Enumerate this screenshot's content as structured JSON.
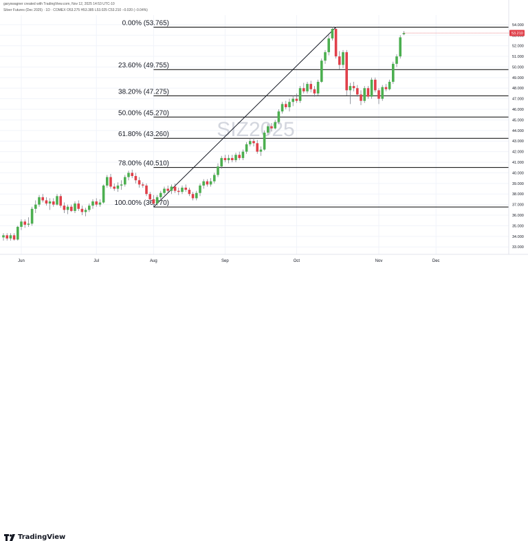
{
  "header": {
    "line1": "garyswagner created with TradingView.com, Nov 12, 2025 14:53 UTC-10",
    "line2": "Silver Futures (Dec 2025) · 1D · COMEX  O53.275  H53.385  L53.025  C53.210  −0.020 (−0.04%)"
  },
  "footer": {
    "brand": "TradingView"
  },
  "chart_data": {
    "type": "candlestick",
    "watermark": "SIZ2025",
    "ylim": [
      32.3,
      54.9
    ],
    "y_ticks": [
      "33.000",
      "34.000",
      "35.000",
      "36.000",
      "37.000",
      "38.000",
      "39.000",
      "40.000",
      "41.000",
      "42.000",
      "43.000",
      "44.000",
      "45.000",
      "46.000",
      "47.000",
      "48.000",
      "49.000",
      "50.000",
      "51.000",
      "52.000",
      "53.000",
      "54.000"
    ],
    "x_labels": [
      {
        "label": "Jun",
        "index": 5
      },
      {
        "label": "Jul",
        "index": 26
      },
      {
        "label": "Aug",
        "index": 42
      },
      {
        "label": "Sep",
        "index": 62
      },
      {
        "label": "Oct",
        "index": 82
      },
      {
        "label": "Nov",
        "index": 105
      },
      {
        "label": "Dec",
        "index": 121
      }
    ],
    "n_slots": 126,
    "last_price": "53.210",
    "fib_levels": [
      {
        "label": "0.00% (53.765)",
        "value": 53.765
      },
      {
        "label": "23.60% (49.755)",
        "value": 49.755
      },
      {
        "label": "38.20% (47.275)",
        "value": 47.275
      },
      {
        "label": "50.00% (45.270)",
        "value": 45.27
      },
      {
        "label": "61.80% (43.260)",
        "value": 43.26
      },
      {
        "label": "78.00% (40.510)",
        "value": 40.51
      },
      {
        "label": "100.00% (36.770)",
        "value": 36.77
      }
    ],
    "trendline": {
      "from": {
        "index": 42,
        "value": 36.77
      },
      "to": {
        "index": 93,
        "value": 53.765
      }
    },
    "colors": {
      "up": "#4caf50",
      "down": "#e0404a",
      "grid": "#f0f3fa",
      "fib": "#000000",
      "watermark": "#d3d6de",
      "price_badge": "#e0404a"
    },
    "candles": [
      [
        33.9,
        34.3,
        33.6,
        34.1
      ],
      [
        34.1,
        34.3,
        33.6,
        33.8
      ],
      [
        33.8,
        34.3,
        33.6,
        34.1
      ],
      [
        34.1,
        34.3,
        33.6,
        33.7
      ],
      [
        33.7,
        35.0,
        33.6,
        34.9
      ],
      [
        34.9,
        35.6,
        34.6,
        35.4
      ],
      [
        35.4,
        35.6,
        34.8,
        35.1
      ],
      [
        35.1,
        35.8,
        34.9,
        35.2
      ],
      [
        35.2,
        36.8,
        35.0,
        36.6
      ],
      [
        36.6,
        37.4,
        36.2,
        37.0
      ],
      [
        37.0,
        37.9,
        36.8,
        37.7
      ],
      [
        37.7,
        38.0,
        37.2,
        37.4
      ],
      [
        37.4,
        37.7,
        36.9,
        37.1
      ],
      [
        37.1,
        37.6,
        36.5,
        37.3
      ],
      [
        37.3,
        37.6,
        36.8,
        37.0
      ],
      [
        37.0,
        38.0,
        36.9,
        37.8
      ],
      [
        37.8,
        38.0,
        36.7,
        36.9
      ],
      [
        36.9,
        37.2,
        36.2,
        36.5
      ],
      [
        36.5,
        37.0,
        36.1,
        36.8
      ],
      [
        36.8,
        37.0,
        36.3,
        36.4
      ],
      [
        36.4,
        37.3,
        36.2,
        37.1
      ],
      [
        37.1,
        37.4,
        36.4,
        36.6
      ],
      [
        36.6,
        36.9,
        36.0,
        36.3
      ],
      [
        36.3,
        36.7,
        35.9,
        36.5
      ],
      [
        36.5,
        37.1,
        36.3,
        36.9
      ],
      [
        36.9,
        37.5,
        36.6,
        37.3
      ],
      [
        37.3,
        37.6,
        36.8,
        37.0
      ],
      [
        37.0,
        37.5,
        36.8,
        37.2
      ],
      [
        37.2,
        38.9,
        37.1,
        38.8
      ],
      [
        38.8,
        39.8,
        38.6,
        39.6
      ],
      [
        39.6,
        39.9,
        38.5,
        38.7
      ],
      [
        38.7,
        39.0,
        38.3,
        38.5
      ],
      [
        38.5,
        39.1,
        38.2,
        38.8
      ],
      [
        38.8,
        39.3,
        38.4,
        38.9
      ],
      [
        38.9,
        39.8,
        38.7,
        39.6
      ],
      [
        39.6,
        40.2,
        39.3,
        40.0
      ],
      [
        40.0,
        40.3,
        39.5,
        39.7
      ],
      [
        39.7,
        40.0,
        39.0,
        39.3
      ],
      [
        39.3,
        39.6,
        38.6,
        38.9
      ],
      [
        38.9,
        39.1,
        38.6,
        38.8
      ],
      [
        38.8,
        39.0,
        37.8,
        38.0
      ],
      [
        38.0,
        38.2,
        37.3,
        37.5
      ],
      [
        37.5,
        37.9,
        36.8,
        37.1
      ],
      [
        37.1,
        37.9,
        36.9,
        37.7
      ],
      [
        37.7,
        38.3,
        37.4,
        38.1
      ],
      [
        38.1,
        38.7,
        37.9,
        38.5
      ],
      [
        38.5,
        38.8,
        38.1,
        38.3
      ],
      [
        38.3,
        38.9,
        38.0,
        38.7
      ],
      [
        38.7,
        39.0,
        38.1,
        38.3
      ],
      [
        38.3,
        38.6,
        37.9,
        38.2
      ],
      [
        38.2,
        38.8,
        38.0,
        38.6
      ],
      [
        38.6,
        38.9,
        38.2,
        38.4
      ],
      [
        38.4,
        38.6,
        37.8,
        38.0
      ],
      [
        38.0,
        38.2,
        37.4,
        37.6
      ],
      [
        37.6,
        38.3,
        37.4,
        38.1
      ],
      [
        38.1,
        39.0,
        37.8,
        38.8
      ],
      [
        38.8,
        39.4,
        38.5,
        39.2
      ],
      [
        39.2,
        39.4,
        38.7,
        38.9
      ],
      [
        38.9,
        39.5,
        38.7,
        39.2
      ],
      [
        39.2,
        40.0,
        39.0,
        39.8
      ],
      [
        39.8,
        40.9,
        39.6,
        40.6
      ],
      [
        40.6,
        41.6,
        40.4,
        41.4
      ],
      [
        41.4,
        41.7,
        41.0,
        41.2
      ],
      [
        41.2,
        41.7,
        40.9,
        41.4
      ],
      [
        41.4,
        41.7,
        41.0,
        41.2
      ],
      [
        41.2,
        41.9,
        41.0,
        41.7
      ],
      [
        41.7,
        42.0,
        41.2,
        41.4
      ],
      [
        41.4,
        42.2,
        41.2,
        42.0
      ],
      [
        42.0,
        42.9,
        41.8,
        42.7
      ],
      [
        42.7,
        43.2,
        42.5,
        43.0
      ],
      [
        43.0,
        43.3,
        42.5,
        42.8
      ],
      [
        42.8,
        43.1,
        41.8,
        42.0
      ],
      [
        42.0,
        42.5,
        41.6,
        42.2
      ],
      [
        42.2,
        44.0,
        42.1,
        43.8
      ],
      [
        43.8,
        44.6,
        43.6,
        44.4
      ],
      [
        44.4,
        44.7,
        43.9,
        44.2
      ],
      [
        44.2,
        45.0,
        44.1,
        44.8
      ],
      [
        44.8,
        46.0,
        44.6,
        45.8
      ],
      [
        45.8,
        46.7,
        45.6,
        46.5
      ],
      [
        46.5,
        46.8,
        46.0,
        46.2
      ],
      [
        46.2,
        47.0,
        45.8,
        46.7
      ],
      [
        46.7,
        47.3,
        46.3,
        47.0
      ],
      [
        47.0,
        47.5,
        46.6,
        46.8
      ],
      [
        46.8,
        48.2,
        46.6,
        48.0
      ],
      [
        48.0,
        48.5,
        47.5,
        47.7
      ],
      [
        47.7,
        48.6,
        47.5,
        48.4
      ],
      [
        48.4,
        48.7,
        47.6,
        47.9
      ],
      [
        47.9,
        48.2,
        47.2,
        47.5
      ],
      [
        47.5,
        48.8,
        47.3,
        48.6
      ],
      [
        48.6,
        50.8,
        48.5,
        50.6
      ],
      [
        50.6,
        51.6,
        50.3,
        51.4
      ],
      [
        51.4,
        53.0,
        51.1,
        52.7
      ],
      [
        52.7,
        53.8,
        52.5,
        53.6
      ],
      [
        53.6,
        53.8,
        50.8,
        51.0
      ],
      [
        51.0,
        51.5,
        49.8,
        50.2
      ],
      [
        50.2,
        51.6,
        49.9,
        51.4
      ],
      [
        51.4,
        51.6,
        47.3,
        47.8
      ],
      [
        47.8,
        48.5,
        46.5,
        48.2
      ],
      [
        48.2,
        48.6,
        47.7,
        48.0
      ],
      [
        48.0,
        48.3,
        47.2,
        47.4
      ],
      [
        47.4,
        47.8,
        46.4,
        46.8
      ],
      [
        46.8,
        48.2,
        46.6,
        48.0
      ],
      [
        48.0,
        48.2,
        47.0,
        47.2
      ],
      [
        47.2,
        49.0,
        47.0,
        48.8
      ],
      [
        48.8,
        49.0,
        47.6,
        47.8
      ],
      [
        47.8,
        48.0,
        46.5,
        47.0
      ],
      [
        47.0,
        48.3,
        46.8,
        48.1
      ],
      [
        48.1,
        48.4,
        47.7,
        47.9
      ],
      [
        47.9,
        48.8,
        47.8,
        48.6
      ],
      [
        48.6,
        50.5,
        48.4,
        50.3
      ],
      [
        50.3,
        51.2,
        50.0,
        51.0
      ],
      [
        51.0,
        53.0,
        50.8,
        52.8
      ],
      [
        53.1,
        53.39,
        53.0,
        53.21
      ]
    ]
  }
}
